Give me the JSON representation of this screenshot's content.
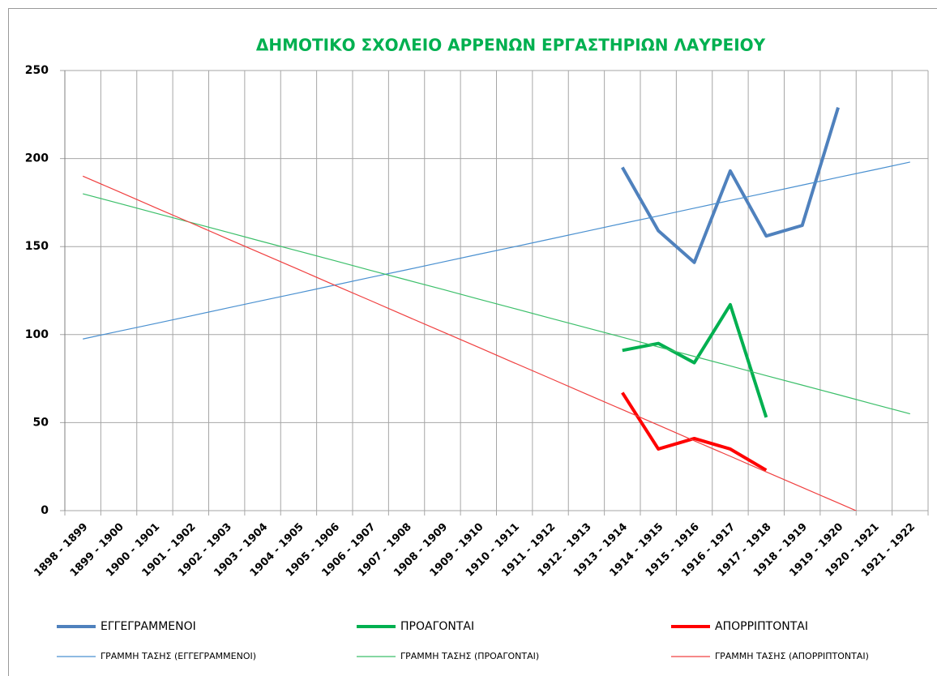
{
  "chart_data": {
    "type": "line",
    "title": "ΔΗΜΟΤΙΚΟ ΣΧΟΛΕΙΟ ΑΡΡΕΝΩΝ  ΕΡΓΑΣΤΗΡΙΩΝ ΛΑΥΡΕΙΟΥ",
    "categories": [
      "1898 - 1899",
      "1899 - 1900",
      "1900 - 1901",
      "1901 - 1902",
      "1902 - 1903",
      "1903 - 1904",
      "1904 - 1905",
      "1905 - 1906",
      "1906 - 1907",
      "1907 - 1908",
      "1908 - 1909",
      "1909 - 1910",
      "1910 - 1911",
      "1911 - 1912",
      "1912 - 1913",
      "1913 - 1914",
      "1914 - 1915",
      "1915 - 1916",
      "1916 - 1917",
      "1917 - 1918",
      "1918 - 1919",
      "1919 - 1920",
      "1920 - 1921",
      "1921 - 1922"
    ],
    "series": [
      {
        "name": "ΕΓΓΕΓΡΑΜΜΕΝΟΙ",
        "color": "#4f81bd",
        "values": [
          null,
          null,
          null,
          null,
          null,
          null,
          null,
          null,
          null,
          null,
          null,
          null,
          null,
          null,
          null,
          195,
          159,
          141,
          193,
          156,
          162,
          229,
          null,
          null
        ]
      },
      {
        "name": "ΠΡΟΑΓΟΝΤΑΙ",
        "color": "#00b050",
        "values": [
          null,
          null,
          null,
          null,
          null,
          null,
          null,
          null,
          null,
          null,
          null,
          null,
          null,
          null,
          null,
          91,
          95,
          84,
          117,
          53,
          null,
          null,
          null,
          null
        ]
      },
      {
        "name": "ΑΠΟΡΡΙΠΤΟΝΤΑΙ",
        "color": "#ff0000",
        "values": [
          null,
          null,
          null,
          null,
          null,
          null,
          null,
          null,
          null,
          null,
          null,
          null,
          null,
          null,
          null,
          67,
          35,
          41,
          35,
          23,
          null,
          null,
          null,
          null
        ]
      },
      {
        "name": "ΓΡΑΜΜΗ ΤΑΣΗΣ (ΕΓΓΕΓΡΑΜΜΕΝΟΙ)",
        "color": "#4a90d0",
        "trend": true,
        "values": [
          97.5,
          101.9,
          106.2,
          110.6,
          115.0,
          119.4,
          123.7,
          128.1,
          132.5,
          136.8,
          141.2,
          145.6,
          149.9,
          154.3,
          158.7,
          163.1,
          167.4,
          171.8,
          176.2,
          180.5,
          184.9,
          189.3,
          193.6,
          198.0
        ]
      },
      {
        "name": "ΓΡΑΜΜΗ ΤΑΣΗΣ (ΠΡΟΑΓΟΝΤΑΙ)",
        "color": "#3cbf6a",
        "trend": true,
        "values": [
          180,
          174.6,
          169.1,
          163.7,
          158.3,
          152.8,
          147.4,
          142.0,
          136.5,
          131.1,
          125.7,
          120.2,
          114.8,
          109.3,
          103.9,
          98.5,
          93.0,
          87.6,
          82.2,
          76.7,
          71.3,
          65.9,
          60.4,
          55.0
        ]
      },
      {
        "name": "ΓΡΑΜΜΗ ΤΑΣΗΣ (ΑΠΟΡΡΙΠΤΟΝΤΑΙ)",
        "color": "#f04040",
        "trend": true,
        "values": [
          190,
          181.2,
          172.3,
          163.5,
          154.6,
          145.8,
          137.0,
          128.1,
          119.3,
          110.4,
          101.6,
          92.8,
          83.9,
          75.1,
          66.2,
          57.4,
          48.6,
          39.7,
          30.9,
          22.0,
          13.2,
          4.4,
          -4.5,
          -13.3
        ]
      }
    ],
    "ylim": [
      0,
      250
    ],
    "yticks": [
      0,
      50,
      100,
      150,
      200,
      250
    ],
    "grid": true,
    "legend": "bottom"
  }
}
